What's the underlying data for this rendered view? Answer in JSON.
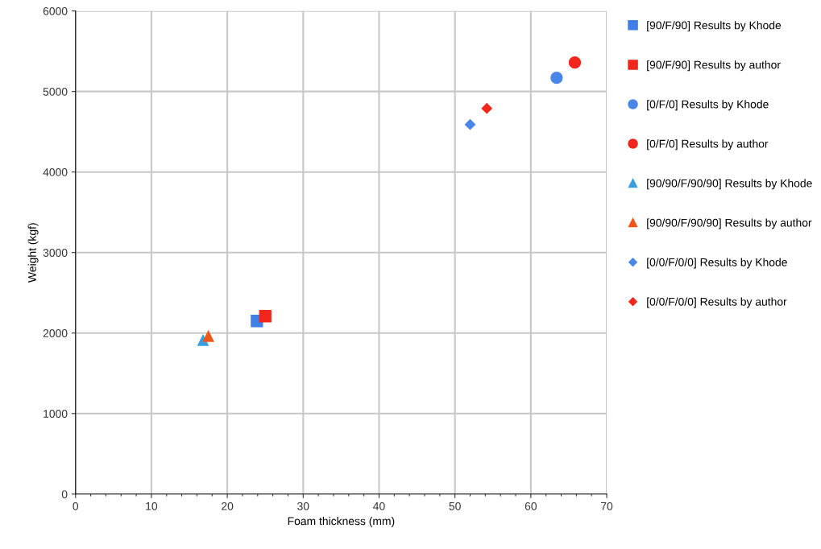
{
  "chart_data": {
    "type": "scatter",
    "xlabel": "Foam thickness (mm)",
    "ylabel": "Weight (kgf)",
    "xlim": [
      0,
      70
    ],
    "xticks": [
      0,
      10,
      20,
      30,
      40,
      50,
      60,
      70
    ],
    "ylim": [
      0,
      6000
    ],
    "yticks": [
      0,
      1000,
      2000,
      3000,
      4000,
      5000,
      6000
    ],
    "grid": true,
    "legend": "right",
    "series": [
      {
        "name": "[90/F/90] Results by Khode",
        "color": "#3f7fe6",
        "marker": "square",
        "x": [
          23.9
        ],
        "values": [
          2150
        ]
      },
      {
        "name": "[90/F/90] Results by author",
        "color": "#f2261b",
        "marker": "square",
        "x": [
          25.0
        ],
        "values": [
          2210
        ]
      },
      {
        "name": "[0/F/0] Results by Khode",
        "color": "#4a86e8",
        "marker": "circle",
        "x": [
          63.4
        ],
        "values": [
          5170
        ]
      },
      {
        "name": "[0/F/0] Results by author",
        "color": "#f2261b",
        "marker": "circle",
        "x": [
          65.8
        ],
        "values": [
          5360
        ]
      },
      {
        "name": "[90/90/F/90/90] Results by Khode",
        "color": "#3a9fe0",
        "marker": "triangle",
        "x": [
          16.8
        ],
        "values": [
          1910
        ]
      },
      {
        "name": "[90/90/F/90/90] Results by author",
        "color": "#f0561a",
        "marker": "triangle",
        "x": [
          17.5
        ],
        "values": [
          1960
        ]
      },
      {
        "name": "[0/0/F/0/0] Results by Khode",
        "color": "#4a86e8",
        "marker": "diamond",
        "x": [
          52.0
        ],
        "values": [
          4590
        ]
      },
      {
        "name": "[0/0/F/0/0] Results by author",
        "color": "#f2261b",
        "marker": "diamond",
        "x": [
          54.2
        ],
        "values": [
          4790
        ]
      }
    ]
  }
}
